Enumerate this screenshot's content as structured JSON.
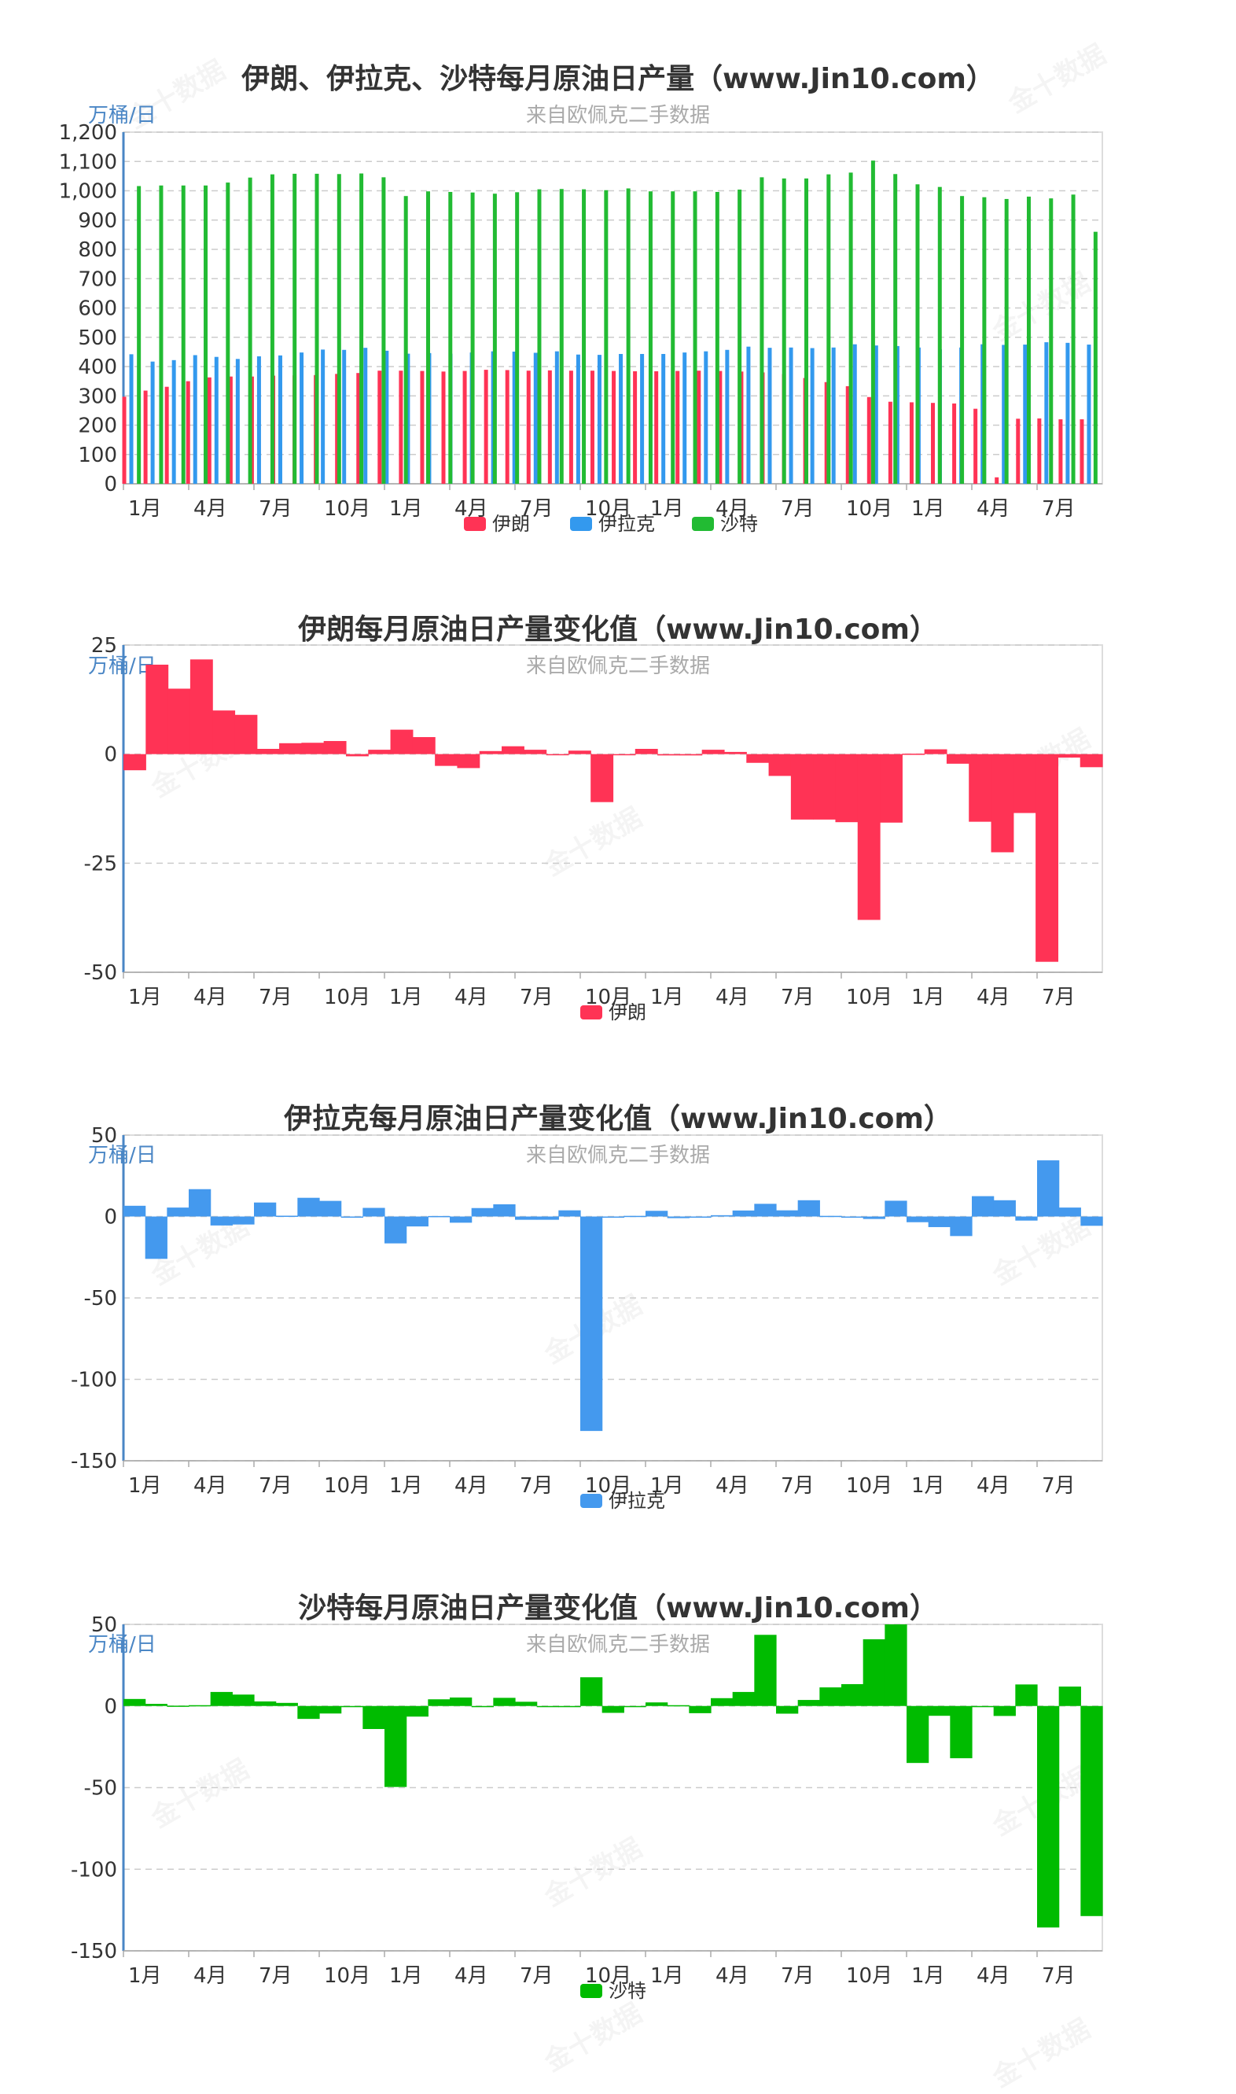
{
  "unit_label": "万桶/日",
  "source_label": "来自欧佩克二手数据",
  "month_ticks": [
    "1月",
    "4月",
    "7月",
    "10月",
    "1月",
    "4月",
    "7月",
    "10月",
    "1月",
    "4月",
    "7月",
    "10月",
    "1月",
    "4月",
    "7月"
  ],
  "watermark": "金十数据",
  "colors": {
    "iran": "#ff3355",
    "iraq": "#3399ee",
    "saudi": "#22bb33",
    "saudi_change": "#00bb00",
    "iraq_change": "#4499ee"
  },
  "chart_data": [
    {
      "type": "bar",
      "title": "伊朗、伊拉克、沙特每月原油日产量（www.Jin10.com）",
      "ylim": [
        0,
        1200
      ],
      "yticks": [
        "0",
        "100",
        "200",
        "300",
        "400",
        "500",
        "600",
        "700",
        "800",
        "900",
        "1,000",
        "1,100",
        "1,200"
      ],
      "legend": "bottom-center",
      "series": [
        {
          "name": "伊朗",
          "values": [
            297,
            318,
            331,
            350,
            363,
            366,
            366,
            369,
            370,
            371,
            375,
            378,
            386,
            386,
            385,
            383,
            385,
            389,
            388,
            386,
            387,
            386,
            386,
            385,
            384,
            384,
            385,
            386,
            385,
            383,
            380,
            374,
            361,
            347,
            333,
            296,
            280,
            278,
            276,
            274,
            256,
            22,
            222,
            223,
            220,
            220
          ]
        },
        {
          "name": "伊拉克",
          "values": [
            442,
            417,
            422,
            439,
            433,
            426,
            435,
            438,
            448,
            458,
            457,
            464,
            454,
            444,
            446,
            444,
            448,
            452,
            451,
            447,
            452,
            441,
            440,
            443,
            443,
            443,
            448,
            452,
            457,
            468,
            464,
            465,
            463,
            465,
            476,
            472,
            470,
            465,
            459,
            465,
            476,
            474,
            475,
            483,
            481,
            475
          ]
        },
        {
          "name": "沙特",
          "values": [
            1016,
            1018,
            1018,
            1018,
            1028,
            1045,
            1056,
            1058,
            1058,
            1057,
            1059,
            1046,
            982,
            998,
            996,
            994,
            990,
            995,
            1005,
            1006,
            1005,
            1002,
            1008,
            998,
            998,
            998,
            996,
            1004,
            1046,
            1042,
            1042,
            1056,
            1062,
            1103,
            1057,
            1022,
            1013,
            982,
            978,
            972,
            980,
            974,
            987,
            860
          ]
        }
      ]
    },
    {
      "type": "bar",
      "title": "伊朗每月原油日产量变化值（www.Jin10.com）",
      "ylim": [
        -50,
        25
      ],
      "yticks": [
        "25",
        "0",
        "-25",
        "-50"
      ],
      "legend": "bottom-center",
      "series": [
        {
          "name": "伊朗",
          "values": [
            -3.7,
            20.5,
            15,
            21.7,
            10,
            9,
            1.2,
            2.5,
            2.6,
            3,
            -0.5,
            1,
            5.6,
            3.9,
            -2.7,
            -3.2,
            0.7,
            1.8,
            1,
            -0.2,
            0.8,
            -11,
            0,
            1.2,
            -0.3,
            -0.3,
            1,
            0.5,
            -2,
            -5,
            -15,
            -15,
            -15.6,
            -38,
            -15.7,
            0.1,
            1.1,
            -2.2,
            -15.5,
            -22.5,
            -13.5,
            -47.6,
            -0.8,
            -3
          ]
        }
      ]
    },
    {
      "type": "bar",
      "title": "伊拉克每月原油日产量变化值（www.Jin10.com）",
      "ylim": [
        -150,
        50
      ],
      "yticks": [
        "50",
        "0",
        "-50",
        "-100",
        "-150"
      ],
      "legend": "bottom-center",
      "series": [
        {
          "name": "伊拉克",
          "values": [
            6.6,
            -26,
            5.5,
            16.8,
            -5.5,
            -4.9,
            8.6,
            0.5,
            11.5,
            9.6,
            -0.5,
            5.3,
            -16.5,
            -6.1,
            0.3,
            -3.8,
            5.2,
            7.5,
            -2,
            -2,
            3.8,
            -131.7,
            0,
            0.4,
            3.5,
            -1,
            -0.4,
            0.8,
            3.7,
            7.8,
            3.8,
            10,
            0.4,
            0,
            -1.5,
            9.7,
            -3.5,
            -6.5,
            -12,
            12.5,
            10,
            -2.5,
            34.5,
            5.5,
            -5.7
          ]
        }
      ]
    },
    {
      "type": "bar",
      "title": "沙特每月原油日产量变化值（www.Jin10.com）",
      "ylim": [
        -150,
        50
      ],
      "yticks": [
        "50",
        "0",
        "-50",
        "-100",
        "-150"
      ],
      "legend": "bottom-center",
      "series": [
        {
          "name": "沙特",
          "values": [
            4.3,
            1.3,
            0.2,
            0.5,
            8.6,
            7,
            2.8,
            1.9,
            -7.9,
            -4.6,
            -0.3,
            -14.1,
            -49.6,
            -6.5,
            4.1,
            5.2,
            -0.4,
            5,
            2.6,
            0,
            -0.3,
            17.6,
            -4.2,
            0,
            2.2,
            0.5,
            -4.4,
            4.8,
            8.6,
            43.6,
            -4.7,
            3.7,
            11.4,
            13.4,
            40.9,
            50,
            -34.9,
            -6,
            -32,
            0,
            -6.1,
            13.2,
            -135.7,
            11.9,
            -128.7
          ]
        }
      ]
    }
  ]
}
